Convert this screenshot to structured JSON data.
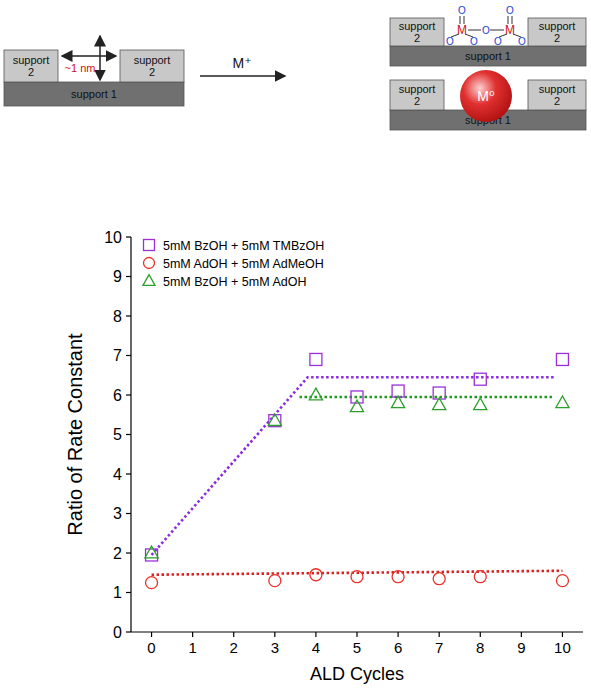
{
  "diagram": {
    "support_1": "support 1",
    "support_2": "support 2",
    "gap": "~1 nm",
    "reagent": "M⁺",
    "metal": "M",
    "oxygen": "O",
    "particle": "M⁰"
  },
  "chart_data": {
    "type": "scatter",
    "x_label": "ALD Cycles",
    "y_label": "Ratio of Rate Constant",
    "xlim": [
      -0.5,
      10.5
    ],
    "xticks": [
      0,
      1,
      2,
      3,
      4,
      5,
      6,
      7,
      8,
      9,
      10
    ],
    "ylim": [
      0,
      10
    ],
    "yticks": [
      0,
      1,
      2,
      3,
      4,
      5,
      6,
      7,
      8,
      9,
      10
    ],
    "grid": false,
    "legend": "upper left",
    "series": [
      {
        "name": "5mM BzOH + 5mM TMBzOH",
        "type": "scatter",
        "marker": "square",
        "color": "#9b30d9",
        "x": [
          0,
          3,
          4,
          5,
          6,
          7,
          8,
          10
        ],
        "values": [
          1.95,
          5.35,
          6.9,
          5.95,
          6.1,
          6.05,
          6.4,
          6.9
        ]
      },
      {
        "name": "5mM AdOH + 5mM AdMeOH",
        "type": "scatter",
        "marker": "circle",
        "color": "#e8322a",
        "x": [
          0,
          3,
          4,
          5,
          6,
          7,
          8,
          10
        ],
        "values": [
          1.25,
          1.3,
          1.45,
          1.4,
          1.4,
          1.35,
          1.4,
          1.3
        ]
      },
      {
        "name": "5mM BzOH + 5mM AdOH",
        "type": "scatter",
        "marker": "triangle",
        "color": "#2ca02c",
        "x": [
          0,
          3,
          4,
          5,
          6,
          7,
          8,
          10
        ],
        "values": [
          2.0,
          5.35,
          6.0,
          5.7,
          5.8,
          5.75,
          5.75,
          5.8
        ]
      },
      {
        "type": "line",
        "line_style": "dotted",
        "color": "#8a2be2",
        "x": [
          0,
          3.8,
          9.8
        ],
        "values": [
          1.95,
          6.45,
          6.45
        ]
      },
      {
        "type": "line",
        "line_style": "dotted",
        "color": "#1f9a1f",
        "x": [
          3.6,
          9.8
        ],
        "values": [
          5.95,
          5.95
        ]
      },
      {
        "type": "line",
        "line_style": "dotted",
        "color": "#e02020",
        "x": [
          0,
          10
        ],
        "values": [
          1.45,
          1.55
        ]
      }
    ]
  }
}
